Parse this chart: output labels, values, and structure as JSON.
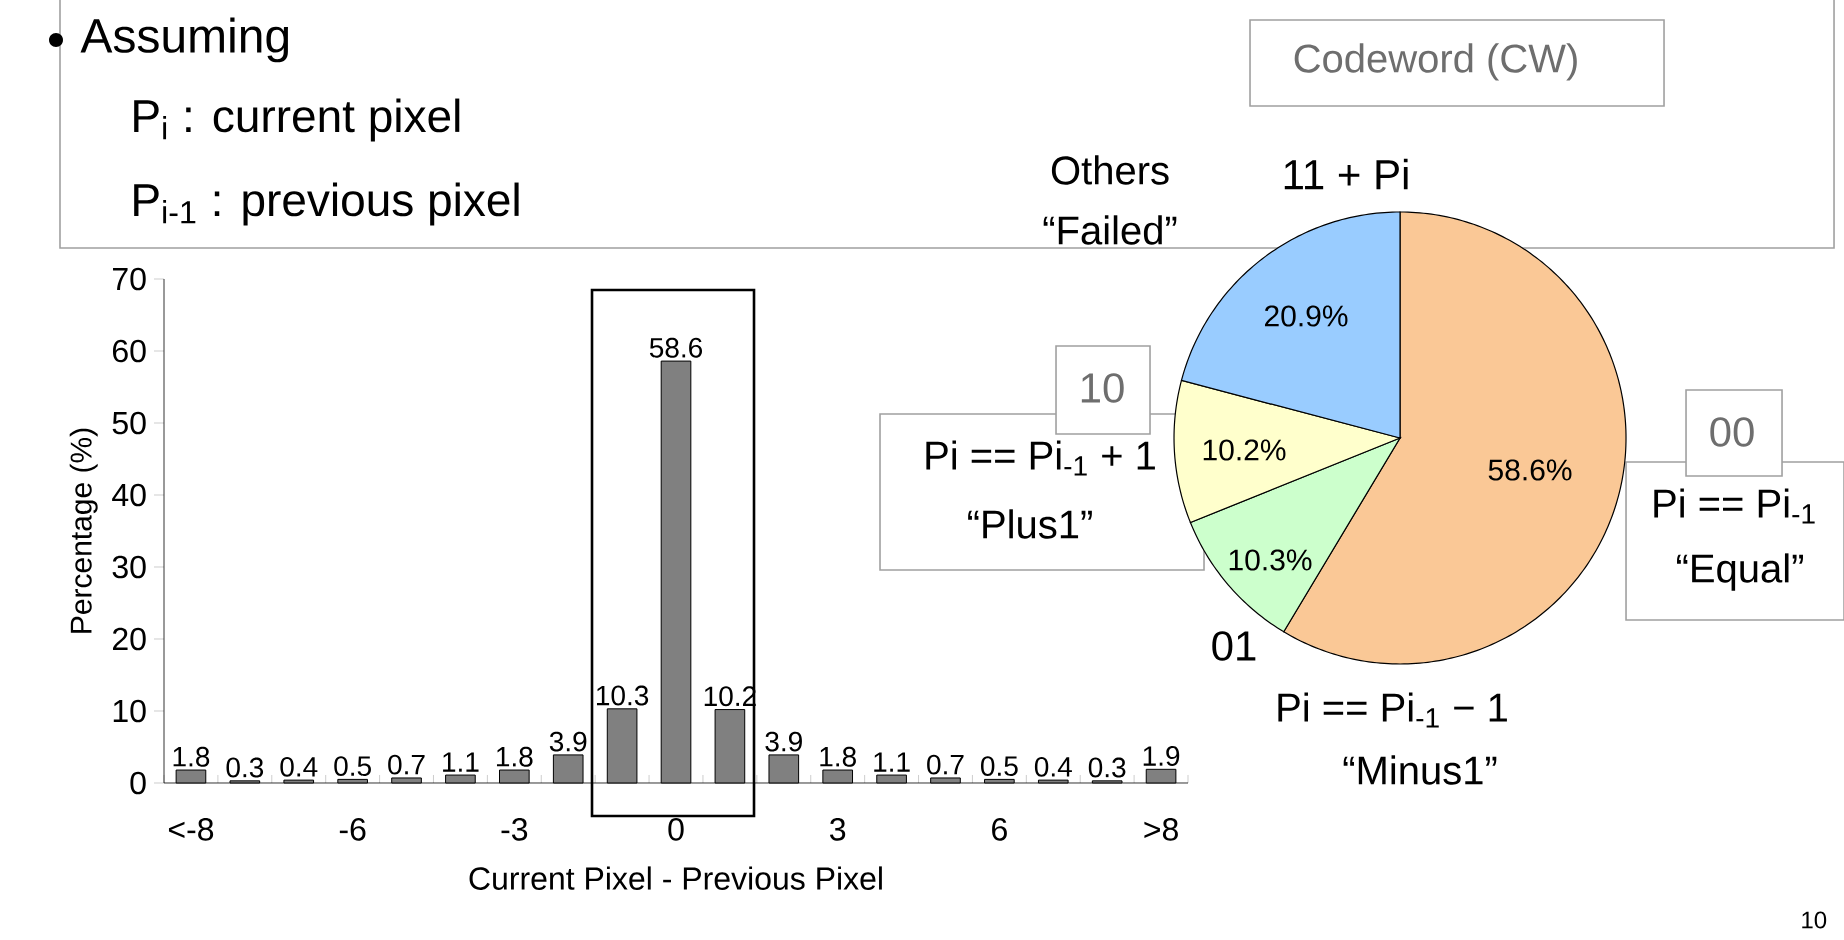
{
  "chart_data": [
    {
      "type": "bar",
      "xlabel": "Current Pixel - Previous Pixel",
      "ylabel": "Percentage (%)",
      "categories": [
        "<-8",
        null,
        null,
        "-6",
        null,
        null,
        "-3",
        null,
        null,
        "0",
        null,
        null,
        "3",
        null,
        null,
        "6",
        null,
        null,
        ">8"
      ],
      "values": [
        1.8,
        0.3,
        0.4,
        0.5,
        0.7,
        1.1,
        1.8,
        3.9,
        10.3,
        58.6,
        10.2,
        3.9,
        1.8,
        1.1,
        0.7,
        0.5,
        0.4,
        0.3,
        1.9
      ],
      "color": "#808080",
      "ylim": [
        0,
        70
      ],
      "yticks": [
        0,
        10,
        20,
        30,
        40,
        50,
        60,
        70
      ],
      "data_labels": true,
      "annotations": [
        "Assuming",
        "P$_{i}$ : current pixel",
        "P$_{i-1}$ : previous pixel",
        "10"
      ]
    },
    {
      "type": "pie",
      "categories": [
        "00",
        "01",
        "10",
        "11 + Pi"
      ],
      "values": [
        58.6,
        10.3,
        10.2,
        20.9
      ],
      "colors": [
        "#fac896",
        "#ccffcc",
        "#ffffcc",
        "#99ccff"
      ],
      "value_labels": [
        "58.6%",
        "10.3%",
        "10.2%",
        "20.9%"
      ],
      "annotations": [
        "Codeword (CW)",
        "Others",
        "“Failed”",
        "Pi == Pi$_{-1}$ + 1",
        "“Plus1”",
        "Pi == Pi$_{-1}$",
        "“Equal”",
        "Pi == Pi$_{-1}$ − 1",
        "“Minus1”"
      ]
    }
  ]
}
